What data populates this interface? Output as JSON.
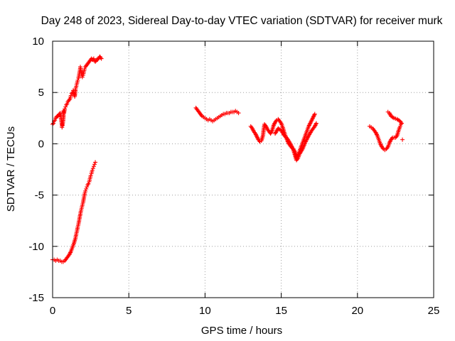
{
  "chart_data": {
    "type": "scatter",
    "title": "Day 248 of 2023, Sidereal Day-to-day VTEC variation (SDTVAR) for receiver murk",
    "xlabel": "GPS time / hours",
    "ylabel": "SDTVAR / TECUs",
    "xlim": [
      0,
      25
    ],
    "ylim": [
      -15,
      10
    ],
    "xticks": [
      "0",
      "5",
      "10",
      "15",
      "20",
      "25"
    ],
    "yticks": [
      "-15",
      "-10",
      "-5",
      "0",
      "5",
      "10"
    ],
    "grid": true,
    "marker": "plus",
    "color": "#ff0000",
    "series": [
      {
        "values_note": "",
        "points": [
          [
            0.0,
            1.9
          ],
          [
            0.05,
            2.0
          ],
          [
            0.1,
            2.2
          ],
          [
            0.15,
            2.3
          ],
          [
            0.2,
            2.5
          ],
          [
            0.25,
            2.6
          ],
          [
            0.3,
            2.7
          ],
          [
            0.35,
            2.7
          ],
          [
            0.4,
            2.8
          ],
          [
            0.45,
            2.9
          ],
          [
            0.5,
            3.0
          ],
          [
            0.55,
            2.5
          ],
          [
            0.6,
            2.0
          ],
          [
            0.62,
            1.6
          ],
          [
            0.65,
            1.8
          ],
          [
            0.7,
            2.4
          ],
          [
            0.72,
            3.2
          ],
          [
            0.75,
            3.0
          ],
          [
            0.8,
            3.4
          ],
          [
            0.85,
            3.6
          ],
          [
            0.9,
            3.8
          ],
          [
            0.95,
            3.9
          ],
          [
            1.0,
            4.1
          ],
          [
            1.05,
            4.2
          ],
          [
            1.1,
            4.3
          ],
          [
            1.15,
            4.4
          ],
          [
            1.2,
            4.7
          ],
          [
            1.25,
            4.9
          ],
          [
            1.3,
            5.0
          ],
          [
            1.35,
            5.2
          ],
          [
            1.4,
            4.9
          ],
          [
            1.45,
            4.6
          ],
          [
            1.5,
            5.3
          ],
          [
            1.55,
            5.6
          ],
          [
            1.6,
            5.9
          ],
          [
            1.65,
            6.2
          ],
          [
            1.7,
            6.4
          ],
          [
            1.75,
            6.8
          ],
          [
            1.8,
            7.2
          ],
          [
            1.82,
            7.5
          ],
          [
            1.85,
            7.2
          ],
          [
            1.9,
            6.8
          ],
          [
            1.95,
            6.5
          ],
          [
            2.0,
            6.7
          ],
          [
            2.05,
            7.0
          ],
          [
            2.1,
            7.3
          ],
          [
            2.15,
            7.5
          ],
          [
            2.2,
            7.6
          ],
          [
            2.25,
            7.7
          ],
          [
            2.3,
            7.8
          ],
          [
            2.35,
            7.9
          ],
          [
            2.4,
            8.0
          ],
          [
            2.45,
            8.1
          ],
          [
            2.5,
            8.2
          ],
          [
            2.55,
            8.3
          ],
          [
            2.6,
            8.2
          ],
          [
            2.65,
            8.2
          ],
          [
            2.7,
            8.3
          ],
          [
            2.75,
            8.1
          ],
          [
            2.8,
            8.0
          ],
          [
            2.85,
            8.1
          ],
          [
            2.9,
            8.2
          ],
          [
            2.95,
            8.2
          ],
          [
            3.0,
            8.3
          ],
          [
            3.05,
            8.4
          ],
          [
            3.1,
            8.5
          ],
          [
            3.15,
            8.4
          ],
          [
            3.2,
            8.3
          ]
        ]
      },
      {
        "points": [
          [
            0.0,
            -11.3
          ],
          [
            0.1,
            -11.3
          ],
          [
            0.2,
            -11.4
          ],
          [
            0.3,
            -11.3
          ],
          [
            0.4,
            -11.4
          ],
          [
            0.5,
            -11.4
          ],
          [
            0.6,
            -11.5
          ],
          [
            0.7,
            -11.5
          ],
          [
            0.8,
            -11.4
          ],
          [
            0.9,
            -11.2
          ],
          [
            1.0,
            -11.0
          ],
          [
            1.1,
            -10.8
          ],
          [
            1.2,
            -10.5
          ],
          [
            1.3,
            -10.1
          ],
          [
            1.4,
            -9.7
          ],
          [
            1.5,
            -9.2
          ],
          [
            1.55,
            -8.8
          ],
          [
            1.6,
            -8.5
          ],
          [
            1.65,
            -8.1
          ],
          [
            1.7,
            -7.8
          ],
          [
            1.75,
            -7.4
          ],
          [
            1.8,
            -7.0
          ],
          [
            1.85,
            -6.6
          ],
          [
            1.9,
            -6.3
          ],
          [
            1.95,
            -6.0
          ],
          [
            2.0,
            -5.7
          ],
          [
            2.05,
            -5.3
          ],
          [
            2.1,
            -4.9
          ],
          [
            2.15,
            -4.6
          ],
          [
            2.2,
            -4.4
          ],
          [
            2.25,
            -4.2
          ],
          [
            2.3,
            -4.0
          ],
          [
            2.35,
            -3.9
          ],
          [
            2.4,
            -3.7
          ],
          [
            2.45,
            -3.4
          ],
          [
            2.5,
            -3.1
          ],
          [
            2.55,
            -2.9
          ],
          [
            2.6,
            -2.6
          ],
          [
            2.65,
            -2.4
          ],
          [
            2.7,
            -2.2
          ],
          [
            2.75,
            -2.0
          ],
          [
            2.8,
            -1.8
          ]
        ]
      },
      {
        "points": [
          [
            9.4,
            3.5
          ],
          [
            9.5,
            3.3
          ],
          [
            9.6,
            3.1
          ],
          [
            9.7,
            2.9
          ],
          [
            9.8,
            2.7
          ],
          [
            9.9,
            2.6
          ],
          [
            10.0,
            2.5
          ],
          [
            10.1,
            2.4
          ],
          [
            10.2,
            2.3
          ],
          [
            10.3,
            2.4
          ],
          [
            10.4,
            2.3
          ],
          [
            10.5,
            2.2
          ],
          [
            10.6,
            2.3
          ],
          [
            10.7,
            2.4
          ],
          [
            10.8,
            2.5
          ],
          [
            10.9,
            2.6
          ],
          [
            11.0,
            2.7
          ],
          [
            11.1,
            2.8
          ],
          [
            11.2,
            2.9
          ],
          [
            11.3,
            2.9
          ],
          [
            11.4,
            3.0
          ],
          [
            11.5,
            3.0
          ],
          [
            11.6,
            3.0
          ],
          [
            11.7,
            3.1
          ],
          [
            11.8,
            3.1
          ],
          [
            11.9,
            3.1
          ],
          [
            12.0,
            3.2
          ],
          [
            12.1,
            3.1
          ],
          [
            12.2,
            3.0
          ]
        ]
      },
      {
        "points": [
          [
            13.0,
            1.7
          ],
          [
            13.1,
            1.5
          ],
          [
            13.2,
            1.2
          ],
          [
            13.3,
            1.0
          ],
          [
            13.4,
            0.7
          ],
          [
            13.5,
            0.4
          ],
          [
            13.6,
            0.2
          ],
          [
            13.7,
            0.3
          ],
          [
            13.8,
            0.8
          ],
          [
            13.85,
            1.4
          ],
          [
            13.9,
            1.9
          ],
          [
            14.0,
            1.7
          ],
          [
            14.1,
            1.4
          ],
          [
            14.2,
            1.2
          ],
          [
            14.3,
            1.0
          ],
          [
            14.4,
            1.3
          ],
          [
            14.5,
            1.8
          ],
          [
            14.6,
            2.1
          ],
          [
            14.7,
            2.3
          ],
          [
            14.8,
            2.4
          ],
          [
            14.9,
            2.2
          ],
          [
            15.0,
            2.0
          ],
          [
            15.1,
            1.6
          ],
          [
            15.2,
            1.1
          ],
          [
            15.3,
            0.7
          ],
          [
            15.4,
            0.3
          ],
          [
            15.5,
            0.0
          ],
          [
            15.6,
            -0.2
          ],
          [
            15.7,
            -0.4
          ],
          [
            15.8,
            -0.5
          ],
          [
            15.9,
            -0.8
          ],
          [
            16.0,
            -1.3
          ],
          [
            16.1,
            -1.1
          ],
          [
            16.2,
            -0.7
          ],
          [
            16.3,
            -0.3
          ],
          [
            16.4,
            0.1
          ],
          [
            16.5,
            0.5
          ],
          [
            16.6,
            0.9
          ],
          [
            16.7,
            1.3
          ],
          [
            16.8,
            1.7
          ],
          [
            16.9,
            2.0
          ],
          [
            17.0,
            2.3
          ],
          [
            17.1,
            2.6
          ],
          [
            17.2,
            2.9
          ],
          [
            14.6,
            1.0
          ],
          [
            14.8,
            1.5
          ],
          [
            15.0,
            1.3
          ],
          [
            15.2,
            0.8
          ],
          [
            15.4,
            0.5
          ],
          [
            15.6,
            0.0
          ],
          [
            15.8,
            -0.6
          ],
          [
            16.0,
            -1.6
          ],
          [
            16.1,
            -1.4
          ],
          [
            16.2,
            -1.0
          ],
          [
            16.4,
            -0.5
          ],
          [
            16.6,
            0.2
          ],
          [
            16.8,
            0.8
          ],
          [
            17.0,
            1.3
          ],
          [
            17.2,
            1.7
          ],
          [
            17.3,
            2.0
          ]
        ]
      },
      {
        "points": [
          [
            20.8,
            1.7
          ],
          [
            20.9,
            1.6
          ],
          [
            21.0,
            1.5
          ],
          [
            21.1,
            1.3
          ],
          [
            21.2,
            1.1
          ],
          [
            21.3,
            0.8
          ],
          [
            21.4,
            0.4
          ],
          [
            21.5,
            0.0
          ],
          [
            21.6,
            -0.3
          ],
          [
            21.7,
            -0.5
          ],
          [
            21.8,
            -0.6
          ],
          [
            21.9,
            -0.5
          ],
          [
            22.0,
            -0.3
          ],
          [
            22.1,
            0.1
          ],
          [
            22.2,
            0.4
          ],
          [
            22.3,
            0.6
          ],
          [
            22.4,
            0.6
          ],
          [
            22.5,
            0.6
          ],
          [
            22.6,
            0.8
          ],
          [
            22.7,
            1.3
          ],
          [
            22.8,
            1.7
          ],
          [
            22.85,
            1.9
          ],
          [
            22.9,
            2.0
          ],
          [
            22.8,
            2.2
          ],
          [
            22.6,
            2.4
          ],
          [
            22.4,
            2.5
          ],
          [
            22.2,
            2.7
          ],
          [
            22.1,
            3.0
          ],
          [
            22.0,
            3.1
          ],
          [
            22.95,
            0.4
          ]
        ]
      }
    ]
  }
}
